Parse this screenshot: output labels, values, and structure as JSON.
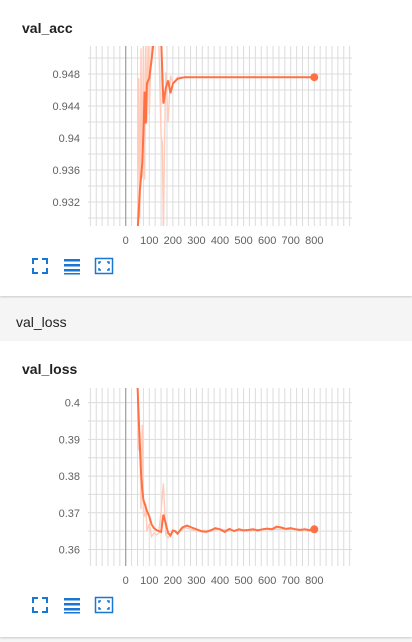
{
  "colors": {
    "line": "#ff7043",
    "line_faint": "#ffccbc",
    "grid": "#dcdcdc",
    "axis": "#9e9e9e"
  },
  "section": {
    "title": "val_loss"
  },
  "icons": [
    "fit-domain-icon",
    "toggle-log-icon",
    "fullscreen-icon"
  ],
  "charts": [
    {
      "title": "val_acc",
      "y_ticks": [
        "0.948",
        "0.944",
        "0.94",
        "0.936",
        "0.932"
      ],
      "x_ticks": [
        "0",
        "100",
        "200",
        "300",
        "400",
        "500",
        "600",
        "700",
        "800"
      ]
    },
    {
      "title": "val_loss",
      "y_ticks": [
        "0.4",
        "0.39",
        "0.38",
        "0.37",
        "0.36"
      ],
      "x_ticks": [
        "0",
        "100",
        "200",
        "300",
        "400",
        "500",
        "600",
        "700",
        "800"
      ]
    }
  ],
  "chart_data": [
    {
      "type": "line",
      "title": "val_acc",
      "xlim": [
        -160,
        960
      ],
      "ylim": [
        0.929,
        0.9515
      ],
      "y_tick_values": [
        0.948,
        0.944,
        0.94,
        0.936,
        0.932
      ],
      "x_tick_values": [
        0,
        100,
        200,
        300,
        400,
        500,
        600,
        700,
        800
      ],
      "grid": true,
      "series": [
        {
          "style": "smoothed",
          "x": [
            50,
            60,
            70,
            75,
            80,
            85,
            90,
            100,
            110,
            120,
            130,
            140,
            150,
            160,
            170,
            180,
            190,
            200,
            220,
            250,
            300,
            400,
            500,
            600,
            700,
            800
          ],
          "y": [
            0.928,
            0.9335,
            0.9368,
            0.9405,
            0.9458,
            0.9418,
            0.9468,
            0.9475,
            0.9498,
            0.9525,
            0.9525,
            0.9525,
            0.9525,
            0.9443,
            0.9462,
            0.9472,
            0.9456,
            0.9468,
            0.9474,
            0.9476,
            0.9476,
            0.9476,
            0.9476,
            0.9476,
            0.9476,
            0.9476
          ]
        },
        {
          "style": "raw",
          "x": [
            50,
            55,
            60,
            65,
            70,
            75,
            80,
            85,
            90,
            95,
            100,
            110,
            120,
            130,
            140,
            150,
            155,
            160,
            165,
            170,
            180,
            190,
            200,
            220,
            250,
            300,
            400,
            500,
            600,
            700,
            800
          ],
          "y": [
            0.928,
            0.9475,
            0.93,
            0.9512,
            0.935,
            0.9525,
            0.9348,
            0.9525,
            0.942,
            0.9525,
            0.943,
            0.9525,
            0.9525,
            0.9525,
            0.9525,
            0.94,
            0.9395,
            0.928,
            0.94,
            0.9482,
            0.942,
            0.9478,
            0.9468,
            0.9476,
            0.9476,
            0.9476,
            0.9476,
            0.9476,
            0.9476,
            0.9476,
            0.9476
          ]
        }
      ]
    },
    {
      "type": "line",
      "title": "val_loss",
      "xlim": [
        -160,
        960
      ],
      "ylim": [
        0.3555,
        0.404
      ],
      "y_tick_values": [
        0.4,
        0.39,
        0.38,
        0.37,
        0.36
      ],
      "x_tick_values": [
        0,
        100,
        200,
        300,
        400,
        500,
        600,
        700,
        800
      ],
      "grid": true,
      "series": [
        {
          "style": "smoothed",
          "x": [
            50,
            55,
            60,
            65,
            70,
            75,
            80,
            90,
            100,
            110,
            120,
            130,
            140,
            150,
            160,
            170,
            180,
            190,
            200,
            210,
            220,
            240,
            260,
            280,
            300,
            320,
            340,
            360,
            380,
            400,
            420,
            440,
            460,
            480,
            500,
            520,
            540,
            560,
            580,
            600,
            620,
            640,
            660,
            680,
            700,
            720,
            740,
            760,
            780,
            800
          ],
          "y": [
            0.405,
            0.396,
            0.388,
            0.381,
            0.3765,
            0.3735,
            0.3725,
            0.3705,
            0.369,
            0.3668,
            0.3658,
            0.3653,
            0.365,
            0.3648,
            0.3695,
            0.367,
            0.3645,
            0.3638,
            0.3652,
            0.365,
            0.3643,
            0.366,
            0.3665,
            0.366,
            0.3655,
            0.365,
            0.3648,
            0.3652,
            0.3658,
            0.3655,
            0.3648,
            0.3656,
            0.365,
            0.3655,
            0.3652,
            0.3653,
            0.3655,
            0.3652,
            0.3655,
            0.3657,
            0.3655,
            0.3662,
            0.366,
            0.3656,
            0.3658,
            0.3655,
            0.3653,
            0.3655,
            0.3652,
            0.3655
          ]
        },
        {
          "style": "raw",
          "x": [
            50,
            55,
            60,
            65,
            70,
            75,
            80,
            85,
            90,
            100,
            110,
            120,
            130,
            140,
            150,
            160,
            170,
            180,
            190,
            200,
            220,
            250,
            300,
            400,
            500,
            600,
            700,
            800
          ],
          "y": [
            0.405,
            0.387,
            0.392,
            0.371,
            0.394,
            0.37,
            0.369,
            0.3725,
            0.365,
            0.367,
            0.3635,
            0.3645,
            0.364,
            0.3645,
            0.3705,
            0.378,
            0.364,
            0.3632,
            0.364,
            0.365,
            0.3645,
            0.366,
            0.365,
            0.3655,
            0.365,
            0.3655,
            0.3655,
            0.3655
          ]
        }
      ]
    }
  ]
}
